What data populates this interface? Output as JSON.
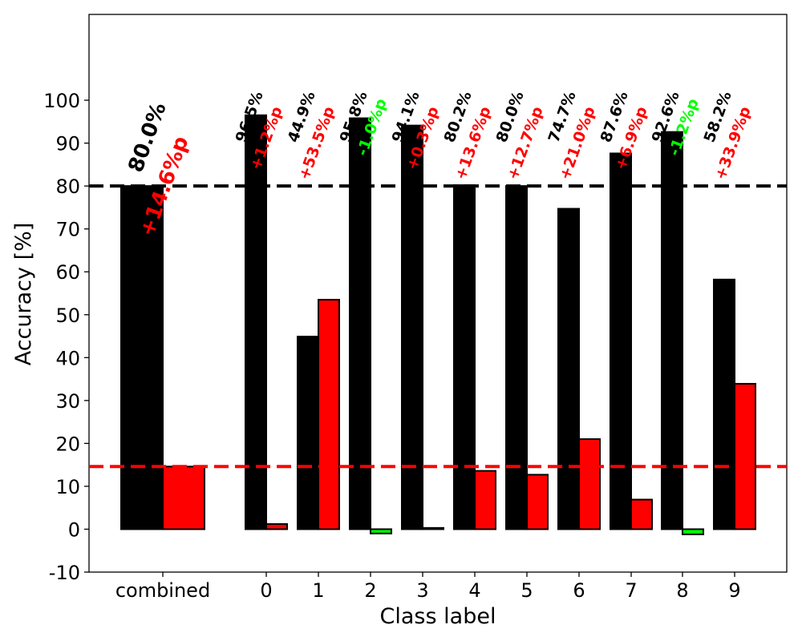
{
  "chart_data": {
    "type": "bar",
    "title": "",
    "xlabel": "Class label",
    "ylabel": "Accuracy [%]",
    "ylim": [
      -10,
      120
    ],
    "yticks": [
      -10,
      0,
      10,
      20,
      30,
      40,
      50,
      60,
      70,
      80,
      90,
      100
    ],
    "grid": false,
    "categories": [
      "combined",
      "0",
      "1",
      "2",
      "3",
      "4",
      "5",
      "6",
      "7",
      "8",
      "9"
    ],
    "series": [
      {
        "name": "accuracy",
        "color": "#000000",
        "values": [
          80.0,
          96.5,
          44.9,
          95.8,
          94.1,
          80.2,
          80.0,
          74.7,
          87.6,
          92.6,
          58.2
        ]
      },
      {
        "name": "change",
        "color": "#ff0000",
        "negative_color": "#00ff00",
        "values": [
          14.6,
          1.2,
          53.5,
          -1.0,
          0.3,
          13.6,
          12.7,
          21.0,
          6.9,
          -1.2,
          33.9
        ]
      }
    ],
    "accuracy_labels": [
      "80.0%",
      "96.5%",
      "44.9%",
      "95.8%",
      "94.1%",
      "80.2%",
      "80.0%",
      "74.7%",
      "87.6%",
      "92.6%",
      "58.2%"
    ],
    "change_labels": [
      "+14.6%p",
      "+1.2%p",
      "+53.5%p",
      "-1.0%p",
      "+0.3%p",
      "+13.6%p",
      "+12.7%p",
      "+21.0%p",
      "+6.9%p",
      "-1.2%p",
      "+33.9%p"
    ],
    "reference_lines": [
      {
        "name": "combined-accuracy-line",
        "value": 80.0,
        "color": "#000000"
      },
      {
        "name": "combined-change-line",
        "value": 14.6,
        "color": "#ff0000"
      }
    ]
  }
}
